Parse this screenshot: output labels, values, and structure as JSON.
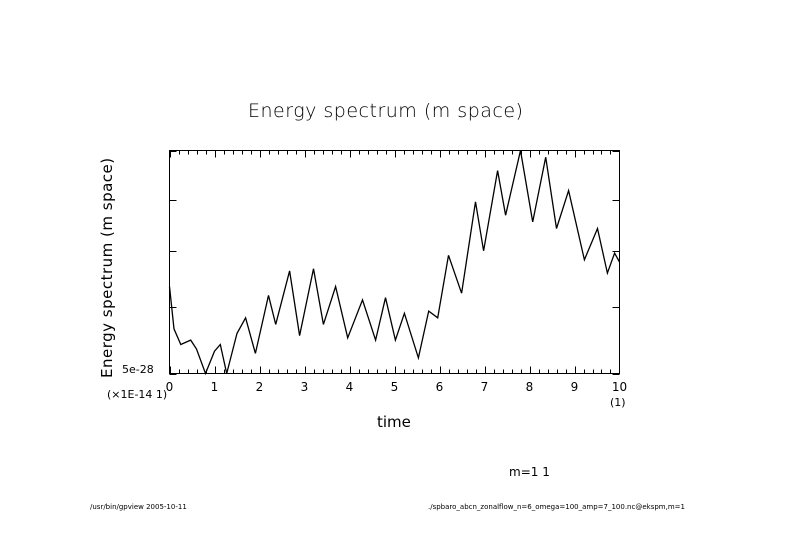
{
  "footer": {
    "program": "/usr/bin/gpview  2005-10-11",
    "file": "./spbaro_abcn_zonalflow_n=6_omega=100_amp=7_100.nc@ekspm,m=1"
  },
  "annotation": "m=1 1",
  "chart_data": {
    "type": "line",
    "title": "Energy spectrum (m space)",
    "xlabel": "time",
    "ylabel": "Energy spectrum (m space)",
    "x_scale_label": "(1)",
    "y_scale_label": "(×1E-14 1)",
    "y_min_label": "5e-28",
    "xlim": [
      0,
      10
    ],
    "ylim_relative": [
      0,
      1
    ],
    "x_ticks": [
      "0",
      "1",
      "2",
      "3",
      "4",
      "5",
      "6",
      "7",
      "8",
      "9",
      "10"
    ],
    "x_minor_step": 0.2,
    "grid": false,
    "series": [
      {
        "name": "m=1 1",
        "x": [
          0,
          0.1,
          0.25,
          0.47,
          0.6,
          0.8,
          1.0,
          1.13,
          1.27,
          1.5,
          1.69,
          1.91,
          2.2,
          2.36,
          2.67,
          2.89,
          3.2,
          3.42,
          3.69,
          3.96,
          4.29,
          4.58,
          4.8,
          5.02,
          5.22,
          5.53,
          5.76,
          5.96,
          6.2,
          6.49,
          6.8,
          6.98,
          7.29,
          7.47,
          7.8,
          8.07,
          8.36,
          8.6,
          8.87,
          9.22,
          9.51,
          9.73,
          9.89,
          10.0
        ],
        "y": [
          0.39,
          0.2,
          0.13,
          0.15,
          0.11,
          0.0,
          0.1,
          0.13,
          0.0,
          0.18,
          0.25,
          0.09,
          0.35,
          0.22,
          0.46,
          0.17,
          0.47,
          0.22,
          0.39,
          0.16,
          0.33,
          0.15,
          0.34,
          0.15,
          0.27,
          0.07,
          0.28,
          0.25,
          0.53,
          0.36,
          0.77,
          0.55,
          0.91,
          0.71,
          1.0,
          0.68,
          0.97,
          0.65,
          0.82,
          0.51,
          0.65,
          0.45,
          0.54,
          0.5
        ]
      }
    ]
  }
}
